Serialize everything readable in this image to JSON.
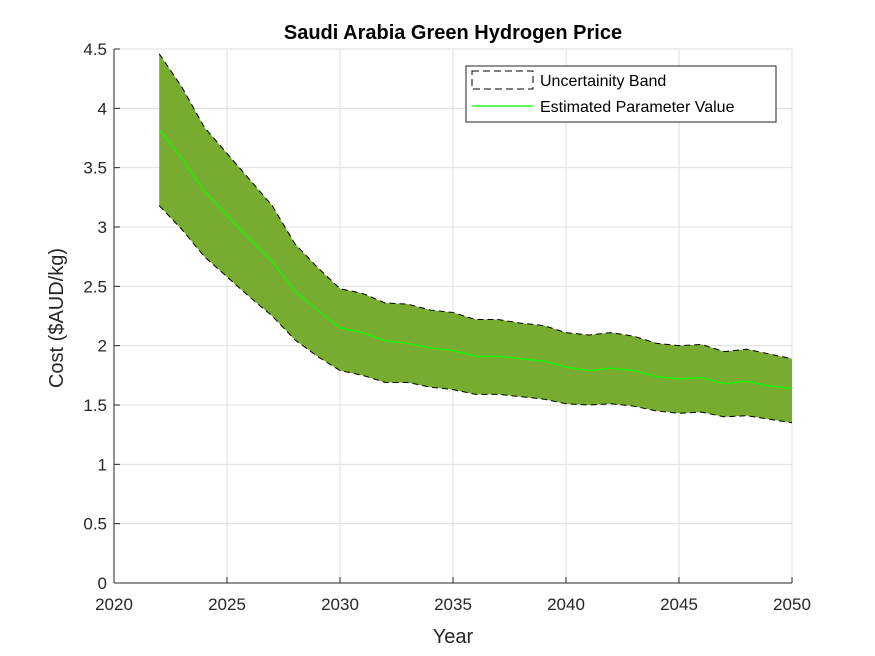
{
  "chart_data": {
    "type": "area",
    "title": "Saudi Arabia Green Hydrogen Price",
    "xlabel": "Year",
    "ylabel": "Cost ($AUD/kg)",
    "xlim": [
      2020,
      2050
    ],
    "ylim": [
      0,
      4.5
    ],
    "xticks": [
      2020,
      2025,
      2030,
      2035,
      2040,
      2045,
      2050
    ],
    "yticks": [
      0,
      0.5,
      1,
      1.5,
      2,
      2.5,
      3,
      3.5,
      4,
      4.5
    ],
    "ytick_labels": [
      "0",
      "0.5",
      "1",
      "1.5",
      "2",
      "2.5",
      "3",
      "3.5",
      "4",
      "4.5"
    ],
    "grid": true,
    "legend_position": "top-right",
    "colors": {
      "band": "#77ac30",
      "line": "#00ff00",
      "band_edge": "#000000"
    },
    "x": [
      2022,
      2023,
      2024,
      2025,
      2026,
      2027,
      2028,
      2029,
      2030,
      2031,
      2032,
      2033,
      2034,
      2035,
      2036,
      2037,
      2038,
      2039,
      2040,
      2041,
      2042,
      2043,
      2044,
      2045,
      2046,
      2047,
      2048,
      2049,
      2050
    ],
    "series": [
      {
        "name": "Estimated Parameter Value",
        "type": "line",
        "values": [
          3.82,
          3.58,
          3.3,
          3.1,
          2.9,
          2.71,
          2.46,
          2.3,
          2.15,
          2.11,
          2.04,
          2.02,
          1.98,
          1.96,
          1.91,
          1.91,
          1.89,
          1.87,
          1.82,
          1.79,
          1.81,
          1.79,
          1.74,
          1.72,
          1.73,
          1.68,
          1.7,
          1.66,
          1.64
        ]
      },
      {
        "name": "Uncertainity Band",
        "type": "band",
        "upper": [
          4.46,
          4.18,
          3.84,
          3.62,
          3.4,
          3.18,
          2.86,
          2.66,
          2.48,
          2.44,
          2.36,
          2.35,
          2.3,
          2.28,
          2.22,
          2.22,
          2.19,
          2.17,
          2.11,
          2.09,
          2.11,
          2.08,
          2.02,
          2.0,
          2.01,
          1.95,
          1.97,
          1.93,
          1.89
        ],
        "lower": [
          3.18,
          2.98,
          2.75,
          2.58,
          2.41,
          2.25,
          2.05,
          1.91,
          1.79,
          1.75,
          1.69,
          1.69,
          1.65,
          1.63,
          1.59,
          1.59,
          1.57,
          1.55,
          1.51,
          1.5,
          1.51,
          1.49,
          1.45,
          1.43,
          1.44,
          1.4,
          1.41,
          1.38,
          1.35
        ]
      }
    ]
  }
}
